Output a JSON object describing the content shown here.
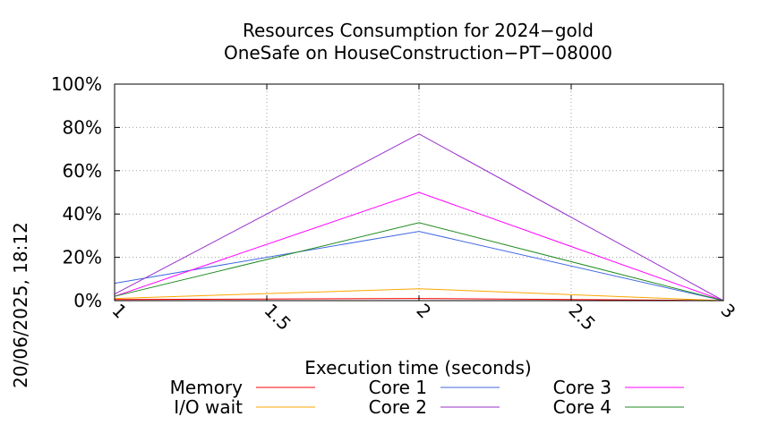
{
  "chart_data": {
    "type": "line",
    "title": "Resources Consumption for 2024−gold",
    "subtitle": "OneSafe on HouseConstruction−PT−08000",
    "xlabel": "Execution time (seconds)",
    "ylabel": "",
    "side_label": "20/06/2025, 18:12",
    "xlim": [
      1,
      3
    ],
    "ylim": [
      0,
      100
    ],
    "x_ticks": [
      {
        "value": 1,
        "label": "1"
      },
      {
        "value": 1.5,
        "label": "1.5"
      },
      {
        "value": 2,
        "label": "2"
      },
      {
        "value": 2.5,
        "label": "2.5"
      },
      {
        "value": 3,
        "label": "3"
      }
    ],
    "y_ticks": [
      {
        "value": 0,
        "label": "0%"
      },
      {
        "value": 20,
        "label": "20%"
      },
      {
        "value": 40,
        "label": "40%"
      },
      {
        "value": 60,
        "label": "60%"
      },
      {
        "value": 80,
        "label": "80%"
      },
      {
        "value": 100,
        "label": "100%"
      }
    ],
    "grid": true,
    "legend_position": "bottom",
    "x": [
      1,
      2,
      3
    ],
    "series": [
      {
        "name": "Memory",
        "color": "#ff0000",
        "values": [
          0.5,
          1.0,
          0
        ]
      },
      {
        "name": "I/O wait",
        "color": "#ffa500",
        "values": [
          1.0,
          5.5,
          0
        ]
      },
      {
        "name": "Core 1",
        "color": "#4169e1",
        "values": [
          8,
          32,
          0
        ]
      },
      {
        "name": "Core 2",
        "color": "#9932cc",
        "values": [
          3,
          77,
          0
        ]
      },
      {
        "name": "Core 3",
        "color": "#ff00ff",
        "values": [
          2,
          50,
          0
        ]
      },
      {
        "name": "Core 4",
        "color": "#228b22",
        "values": [
          2,
          36,
          0
        ]
      }
    ]
  }
}
